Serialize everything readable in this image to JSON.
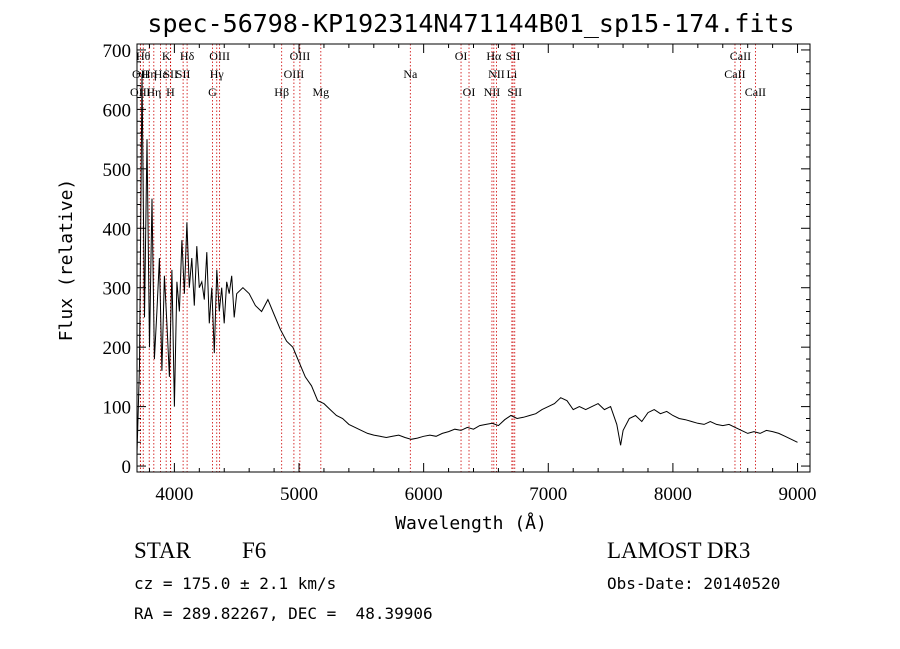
{
  "chart_data": {
    "type": "line",
    "title": "spec-56798-KP192314N471144B01_sp15-174.fits",
    "xlabel": "Wavelength (Å)",
    "ylabel": "Flux (relative)",
    "xlim": [
      3700,
      9100
    ],
    "ylim": [
      -10,
      710
    ],
    "xticks": [
      4000,
      5000,
      6000,
      7000,
      8000,
      9000
    ],
    "yticks": [
      0,
      100,
      200,
      300,
      400,
      500,
      600,
      700
    ],
    "grid": false,
    "series": [
      {
        "name": "flux",
        "x": [
          3700,
          3720,
          3740,
          3760,
          3780,
          3800,
          3820,
          3840,
          3860,
          3880,
          3900,
          3920,
          3940,
          3960,
          3980,
          4000,
          4020,
          4040,
          4060,
          4080,
          4100,
          4120,
          4140,
          4160,
          4180,
          4200,
          4220,
          4240,
          4260,
          4280,
          4300,
          4320,
          4340,
          4360,
          4380,
          4400,
          4420,
          4440,
          4460,
          4480,
          4500,
          4550,
          4600,
          4650,
          4700,
          4750,
          4800,
          4850,
          4900,
          4950,
          5000,
          5050,
          5100,
          5150,
          5200,
          5250,
          5300,
          5350,
          5400,
          5450,
          5500,
          5550,
          5600,
          5650,
          5700,
          5750,
          5800,
          5850,
          5900,
          5950,
          6000,
          6050,
          6100,
          6150,
          6200,
          6250,
          6300,
          6350,
          6400,
          6450,
          6500,
          6550,
          6600,
          6650,
          6700,
          6750,
          6800,
          6850,
          6900,
          6950,
          7000,
          7050,
          7100,
          7150,
          7200,
          7250,
          7300,
          7350,
          7400,
          7450,
          7500,
          7550,
          7580,
          7600,
          7650,
          7700,
          7750,
          7800,
          7850,
          7900,
          7950,
          8000,
          8050,
          8100,
          8150,
          8200,
          8250,
          8300,
          8350,
          8400,
          8450,
          8500,
          8550,
          8600,
          8650,
          8700,
          8750,
          8800,
          8850,
          8900,
          8950,
          9000
        ],
        "y": [
          20,
          170,
          660,
          250,
          550,
          200,
          450,
          180,
          260,
          350,
          160,
          320,
          240,
          150,
          330,
          100,
          310,
          260,
          380,
          290,
          410,
          300,
          350,
          270,
          370,
          300,
          310,
          280,
          360,
          240,
          300,
          190,
          330,
          260,
          300,
          240,
          310,
          290,
          320,
          250,
          290,
          300,
          290,
          270,
          260,
          280,
          255,
          230,
          210,
          200,
          175,
          150,
          135,
          110,
          105,
          95,
          85,
          80,
          70,
          65,
          60,
          55,
          52,
          50,
          48,
          50,
          52,
          48,
          45,
          47,
          50,
          52,
          50,
          55,
          58,
          62,
          60,
          65,
          62,
          68,
          70,
          72,
          68,
          78,
          85,
          80,
          82,
          85,
          88,
          95,
          100,
          105,
          115,
          110,
          95,
          100,
          95,
          100,
          105,
          95,
          100,
          70,
          35,
          60,
          80,
          85,
          75,
          90,
          95,
          88,
          92,
          85,
          80,
          78,
          75,
          72,
          70,
          75,
          70,
          68,
          70,
          65,
          60,
          55,
          58,
          55,
          60,
          58,
          55,
          50,
          45,
          40
        ]
      }
    ],
    "lines": [
      {
        "label": "Hθ",
        "x": 3750,
        "row": 0
      },
      {
        "label": "OII",
        "x": 3727,
        "row": 1
      },
      {
        "label": "OIII",
        "x": 3727,
        "row": 2
      },
      {
        "label": "Hη",
        "x": 3798,
        "row": 1
      },
      {
        "label": "Hη",
        "x": 3835,
        "row": 2
      },
      {
        "label": "K",
        "x": 3934,
        "row": 0
      },
      {
        "label": "Hε",
        "x": 3889,
        "row": 1
      },
      {
        "label": "SII",
        "x": 3970,
        "row": 1
      },
      {
        "label": "H",
        "x": 3968,
        "row": 2
      },
      {
        "label": "Hδ",
        "x": 4102,
        "row": 0
      },
      {
        "label": "SII",
        "x": 4070,
        "row": 1
      },
      {
        "label": "OIII",
        "x": 4363,
        "row": 0
      },
      {
        "label": "Hγ",
        "x": 4340,
        "row": 1
      },
      {
        "label": "G",
        "x": 4305,
        "row": 2
      },
      {
        "label": "OIII",
        "x": 5007,
        "row": 0
      },
      {
        "label": "OIII",
        "x": 4959,
        "row": 1
      },
      {
        "label": "Hβ",
        "x": 4861,
        "row": 2
      },
      {
        "label": "Mg",
        "x": 5175,
        "row": 2
      },
      {
        "label": "Na",
        "x": 5893,
        "row": 1
      },
      {
        "label": "OI",
        "x": 6300,
        "row": 0
      },
      {
        "label": "OI",
        "x": 6364,
        "row": 2
      },
      {
        "label": "Hα",
        "x": 6563,
        "row": 0
      },
      {
        "label": "SII",
        "x": 6717,
        "row": 0
      },
      {
        "label": "NII",
        "x": 6584,
        "row": 1
      },
      {
        "label": "Li",
        "x": 6708,
        "row": 1
      },
      {
        "label": "NII",
        "x": 6548,
        "row": 2
      },
      {
        "label": "SII",
        "x": 6731,
        "row": 2
      },
      {
        "label": "CaII",
        "x": 8542,
        "row": 0
      },
      {
        "label": "CaII",
        "x": 8498,
        "row": 1
      },
      {
        "label": "CaII",
        "x": 8662,
        "row": 2
      }
    ]
  },
  "info": {
    "object_class": "STAR",
    "subclass": "F6",
    "survey": "LAMOST DR3",
    "cz": "cz = 175.0 ± 2.1 km/s",
    "obs_date": "Obs-Date: 20140520",
    "coords": "RA = 289.82267, DEC =  48.39906"
  },
  "colors": {
    "spectrum": "#000000",
    "marker": "#cc0000",
    "axis": "#000000"
  }
}
